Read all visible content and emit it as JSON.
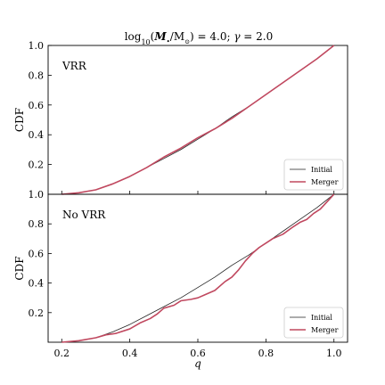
{
  "figure": {
    "title_html": "log<tspan baseline-shift=\"sub\" font-size=\"8\">10</tspan>(<tspan font-style=\"italic\" font-weight=\"bold\">M</tspan><tspan baseline-shift=\"sub\" font-size=\"7\">•</tspan>/M<tspan baseline-shift=\"sub\" font-size=\"7\">⊙</tspan>) = 4.0; <tspan font-style=\"italic\">γ</tspan> = 2.0",
    "title_plain": "log10(M•/M⊙) = 4.0; γ = 2.0",
    "xlabel": "q"
  },
  "chart_data": [
    {
      "type": "line",
      "panel_label": "VRR",
      "ylabel": "CDF",
      "xlim": [
        0.16,
        1.04
      ],
      "ylim": [
        0.0,
        1.0
      ],
      "xticks": [
        0.2,
        0.4,
        0.6,
        0.8,
        1.0
      ],
      "xtick_labels": [
        "0.2",
        "0.4",
        "0.6",
        "0.8",
        "1.0"
      ],
      "yticks": [
        0.2,
        0.4,
        0.6,
        0.8,
        1.0
      ],
      "ytick_labels": [
        "0.2",
        "0.4",
        "0.6",
        "0.8",
        "1.0"
      ],
      "legend_loc": "lower right",
      "series": [
        {
          "name": "Initial",
          "color": "#222222",
          "x": [
            0.2,
            0.25,
            0.3,
            0.35,
            0.4,
            0.45,
            0.5,
            0.55,
            0.6,
            0.65,
            0.7,
            0.75,
            0.8,
            0.85,
            0.9,
            0.95,
            1.0
          ],
          "y": [
            0.0,
            0.01,
            0.03,
            0.07,
            0.12,
            0.18,
            0.24,
            0.3,
            0.37,
            0.44,
            0.52,
            0.59,
            0.67,
            0.75,
            0.83,
            0.91,
            1.0
          ]
        },
        {
          "name": "Merger",
          "color": "#c0485f",
          "x": [
            0.2,
            0.25,
            0.3,
            0.35,
            0.4,
            0.45,
            0.5,
            0.55,
            0.6,
            0.65,
            0.7,
            0.75,
            0.8,
            0.85,
            0.9,
            0.95,
            1.0
          ],
          "y": [
            0.0,
            0.01,
            0.03,
            0.07,
            0.12,
            0.18,
            0.25,
            0.31,
            0.38,
            0.44,
            0.51,
            0.59,
            0.67,
            0.75,
            0.83,
            0.91,
            1.0
          ]
        }
      ]
    },
    {
      "type": "line",
      "panel_label": "No VRR",
      "ylabel": "CDF",
      "xlabel": "q",
      "xlim": [
        0.16,
        1.04
      ],
      "ylim": [
        0.0,
        1.0
      ],
      "xticks": [
        0.2,
        0.4,
        0.6,
        0.8,
        1.0
      ],
      "xtick_labels": [
        "0.2",
        "0.4",
        "0.6",
        "0.8",
        "1.0"
      ],
      "yticks": [
        0.2,
        0.4,
        0.6,
        0.8,
        1.0
      ],
      "ytick_labels": [
        "0.2",
        "0.4",
        "0.6",
        "0.8",
        "1.0"
      ],
      "legend_loc": "lower right",
      "series": [
        {
          "name": "Initial",
          "color": "#222222",
          "x": [
            0.2,
            0.25,
            0.3,
            0.35,
            0.4,
            0.45,
            0.5,
            0.55,
            0.6,
            0.65,
            0.7,
            0.75,
            0.8,
            0.85,
            0.9,
            0.95,
            1.0
          ],
          "y": [
            0.0,
            0.01,
            0.03,
            0.07,
            0.12,
            0.18,
            0.24,
            0.3,
            0.37,
            0.44,
            0.52,
            0.59,
            0.67,
            0.75,
            0.83,
            0.91,
            1.0
          ]
        },
        {
          "name": "Merger",
          "color": "#c0485f",
          "x": [
            0.2,
            0.25,
            0.3,
            0.33,
            0.36,
            0.4,
            0.43,
            0.46,
            0.48,
            0.5,
            0.53,
            0.55,
            0.58,
            0.6,
            0.62,
            0.65,
            0.68,
            0.7,
            0.72,
            0.74,
            0.76,
            0.78,
            0.8,
            0.82,
            0.85,
            0.88,
            0.9,
            0.92,
            0.94,
            0.96,
            0.98,
            1.0
          ],
          "y": [
            0.0,
            0.01,
            0.03,
            0.05,
            0.06,
            0.09,
            0.13,
            0.16,
            0.19,
            0.23,
            0.25,
            0.28,
            0.29,
            0.3,
            0.32,
            0.35,
            0.41,
            0.44,
            0.49,
            0.55,
            0.6,
            0.64,
            0.67,
            0.7,
            0.73,
            0.78,
            0.81,
            0.83,
            0.87,
            0.9,
            0.95,
            1.0
          ]
        }
      ]
    }
  ]
}
